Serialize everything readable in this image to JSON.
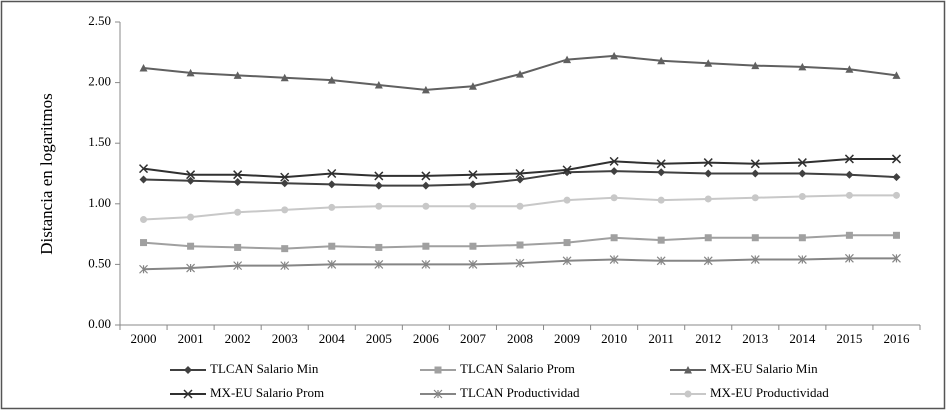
{
  "chart_data": {
    "type": "line",
    "y_label": "Distancia en logaritmos",
    "categories": [
      "2000",
      "2001",
      "2002",
      "2003",
      "2004",
      "2005",
      "2006",
      "2007",
      "2008",
      "2009",
      "2010",
      "2011",
      "2012",
      "2013",
      "2014",
      "2015",
      "2016"
    ],
    "ylim": [
      0,
      2.5
    ],
    "yticks": [
      {
        "value": 0,
        "label": "0.00"
      },
      {
        "value": 0.5,
        "label": "0.50"
      },
      {
        "value": 1,
        "label": "1.00"
      },
      {
        "value": 1.5,
        "label": "1.50"
      },
      {
        "value": 2,
        "label": "2.00"
      },
      {
        "value": 2.5,
        "label": "2.50"
      }
    ],
    "grid": false,
    "legend": "bottom",
    "series": [
      {
        "name": "TLCAN Salario Min",
        "color": "#404040",
        "marker": "diamond",
        "values": [
          1.2,
          1.19,
          1.18,
          1.17,
          1.16,
          1.15,
          1.15,
          1.16,
          1.2,
          1.26,
          1.27,
          1.26,
          1.25,
          1.25,
          1.25,
          1.24,
          1.22
        ]
      },
      {
        "name": "TLCAN Salario Prom",
        "color": "#a0a0a0",
        "marker": "square",
        "values": [
          0.68,
          0.65,
          0.64,
          0.63,
          0.65,
          0.64,
          0.65,
          0.65,
          0.66,
          0.68,
          0.72,
          0.7,
          0.72,
          0.72,
          0.72,
          0.74,
          0.74
        ]
      },
      {
        "name": "MX-EU Salario Min",
        "color": "#606060",
        "marker": "triangle",
        "values": [
          2.12,
          2.08,
          2.06,
          2.04,
          2.02,
          1.98,
          1.94,
          1.97,
          2.07,
          2.19,
          2.22,
          2.18,
          2.16,
          2.14,
          2.13,
          2.11,
          2.06
        ]
      },
      {
        "name": "MX-EU Salario Prom",
        "color": "#303030",
        "marker": "x",
        "values": [
          1.29,
          1.24,
          1.24,
          1.22,
          1.25,
          1.23,
          1.23,
          1.24,
          1.25,
          1.28,
          1.35,
          1.33,
          1.34,
          1.33,
          1.34,
          1.37,
          1.37
        ]
      },
      {
        "name": "TLCAN Productividad",
        "color": "#858585",
        "marker": "asterisk",
        "values": [
          0.46,
          0.47,
          0.49,
          0.49,
          0.5,
          0.5,
          0.5,
          0.5,
          0.51,
          0.53,
          0.54,
          0.53,
          0.53,
          0.54,
          0.54,
          0.55,
          0.55
        ]
      },
      {
        "name": "MX-EU Productividad",
        "color": "#c8c8c8",
        "marker": "circle",
        "values": [
          0.87,
          0.89,
          0.93,
          0.95,
          0.97,
          0.98,
          0.98,
          0.98,
          0.98,
          1.03,
          1.05,
          1.03,
          1.04,
          1.05,
          1.06,
          1.07,
          1.07
        ]
      }
    ]
  }
}
